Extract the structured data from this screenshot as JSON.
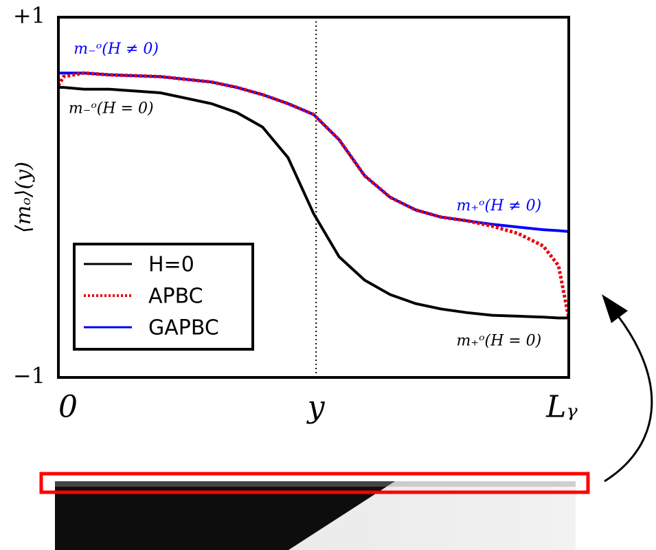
{
  "chart_data": {
    "type": "line",
    "ylabel": "⟨mₒ⟩(y)",
    "xlim": [
      0,
      1
    ],
    "ylim": [
      -1,
      1
    ],
    "xticks": [
      {
        "value": 0,
        "label": "0"
      },
      {
        "value": 0.505,
        "label": "y"
      },
      {
        "value": 1,
        "label": "Lᵧ"
      }
    ],
    "yticks": [
      {
        "value": -1,
        "label": "−1"
      },
      {
        "value": 1,
        "label": "+1"
      }
    ],
    "x": [
      0,
      0.01,
      0.05,
      0.1,
      0.2,
      0.3,
      0.35,
      0.4,
      0.45,
      0.5,
      0.55,
      0.6,
      0.65,
      0.7,
      0.75,
      0.8,
      0.85,
      0.9,
      0.95,
      0.98,
      1
    ],
    "legend": "lower left",
    "series": [
      {
        "name": "H=0",
        "color": "#000000",
        "style": "solid",
        "values": [
          0.61,
          0.61,
          0.6,
          0.6,
          0.58,
          0.52,
          0.47,
          0.39,
          0.22,
          -0.09,
          -0.33,
          -0.46,
          -0.54,
          -0.59,
          -0.62,
          -0.64,
          -0.655,
          -0.66,
          -0.665,
          -0.67,
          -0.67
        ]
      },
      {
        "name": "APBC",
        "color": "#e8000b",
        "style": "dotted",
        "values": [
          0.62,
          0.67,
          0.69,
          0.68,
          0.67,
          0.64,
          0.61,
          0.57,
          0.52,
          0.46,
          0.32,
          0.12,
          0.0,
          -0.07,
          -0.11,
          -0.13,
          -0.16,
          -0.2,
          -0.27,
          -0.38,
          -0.67
        ]
      },
      {
        "name": "GAPBC",
        "color": "#0000ff",
        "style": "solid",
        "values": [
          0.69,
          0.69,
          0.69,
          0.68,
          0.67,
          0.64,
          0.61,
          0.57,
          0.52,
          0.46,
          0.32,
          0.12,
          0.0,
          -0.07,
          -0.11,
          -0.13,
          -0.15,
          -0.165,
          -0.18,
          -0.185,
          -0.19
        ]
      }
    ],
    "annotations": [
      {
        "text": "m₋ᵒ(H ≠ 0)",
        "x": 0.03,
        "y": 0.82,
        "color": "#0000ff"
      },
      {
        "text": "m₋ᵒ(H = 0)",
        "x": 0.02,
        "y": 0.49,
        "color": "#000000"
      },
      {
        "text": "m₊ᵒ(H ≠ 0)",
        "x": 0.78,
        "y": -0.05,
        "color": "#0000ff"
      },
      {
        "text": "m₊ᵒ(H = 0)",
        "x": 0.78,
        "y": -0.8,
        "color": "#000000"
      }
    ]
  }
}
